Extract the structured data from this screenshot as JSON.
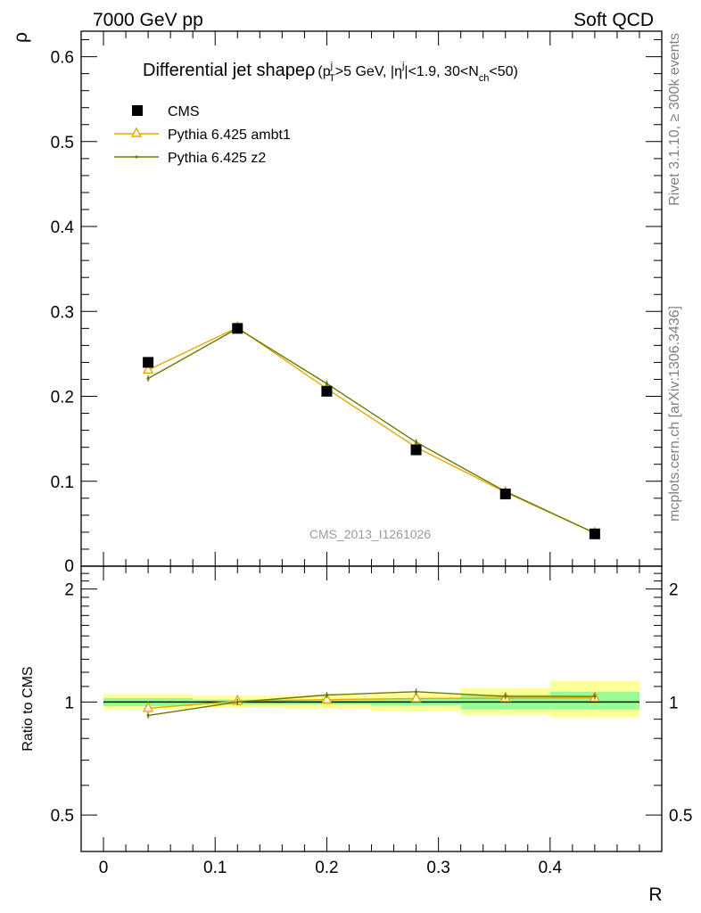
{
  "header": {
    "left": "7000 GeV pp",
    "right": "Soft QCD"
  },
  "side_labels": {
    "rivet": "Rivet 3.1.10, ≥ 300k events",
    "mcplots": "mcplots.cern.ch [arXiv:1306.3436]"
  },
  "chart_data": [
    {
      "type": "scatter",
      "title": {
        "main": "Differential jet shape",
        "rho": "ρ",
        "open": "(p",
        "pt_sup": "j",
        "pt_sub": "T",
        "mid1": ">5 GeV, |η",
        "eta_sup": "j",
        "mid2": "|<1.9, 30<N",
        "nch_sub": "ch",
        "close": "<50)"
      },
      "ylabel": "ρ",
      "xlabel": "R",
      "watermark": "CMS_2013_I1261026",
      "xlim": [
        -0.02,
        0.5
      ],
      "ylim": [
        0,
        0.63
      ],
      "yticks": [
        0.1,
        0.2,
        0.3,
        0.4,
        0.5,
        0.6
      ],
      "ytick_labels": [
        "0.1",
        "0.2",
        "0.3",
        "0.4",
        "0.5",
        "0.6"
      ],
      "y_zero_label": "0",
      "legend_position": "top-left",
      "series": [
        {
          "name": "CMS",
          "marker": "square",
          "color": "#000000",
          "x": [
            0.04,
            0.12,
            0.2,
            0.28,
            0.36,
            0.44
          ],
          "y": [
            0.24,
            0.28,
            0.206,
            0.137,
            0.085,
            0.038
          ]
        },
        {
          "name": "Pythia 6.425 ambt1",
          "marker": "triangle-open",
          "color": "#e8a800",
          "x": [
            0.04,
            0.12,
            0.2,
            0.28,
            0.36,
            0.44
          ],
          "y": [
            0.231,
            0.281,
            0.209,
            0.14,
            0.087,
            0.039
          ]
        },
        {
          "name": "Pythia 6.425 z2",
          "marker": "dot",
          "color": "#6b7a00",
          "x": [
            0.04,
            0.12,
            0.2,
            0.28,
            0.36,
            0.44
          ],
          "y": [
            0.221,
            0.28,
            0.215,
            0.146,
            0.088,
            0.039
          ]
        }
      ]
    },
    {
      "type": "scatter",
      "ylabel": "Ratio to CMS",
      "xlabel": "R",
      "log_y": true,
      "xlim": [
        -0.02,
        0.5
      ],
      "ylim": [
        0.4,
        2.3
      ],
      "yticks": [
        0.5,
        1,
        2
      ],
      "ytick_labels": [
        "0.5",
        "1",
        "2"
      ],
      "xticks": [
        0,
        0.1,
        0.2,
        0.3,
        0.4
      ],
      "xtick_labels": [
        "0",
        "0.1",
        "0.2",
        "0.3",
        "0.4"
      ],
      "bands": {
        "bins": [
          [
            0,
            0.08
          ],
          [
            0.08,
            0.16
          ],
          [
            0.16,
            0.24
          ],
          [
            0.24,
            0.32
          ],
          [
            0.32,
            0.4
          ],
          [
            0.4,
            0.48
          ]
        ],
        "inner": [
          [
            0.975,
            1.025
          ],
          [
            0.985,
            1.015
          ],
          [
            0.985,
            1.015
          ],
          [
            0.98,
            1.02
          ],
          [
            0.955,
            1.045
          ],
          [
            0.955,
            1.065
          ]
        ],
        "outer": [
          [
            0.955,
            1.05
          ],
          [
            0.965,
            1.04
          ],
          [
            0.96,
            1.045
          ],
          [
            0.945,
            1.055
          ],
          [
            0.925,
            1.09
          ],
          [
            0.91,
            1.14
          ]
        ],
        "inner_color": "#98fb98",
        "outer_color": "#ffff99"
      },
      "series": [
        {
          "name": "Pythia 6.425 ambt1",
          "marker": "triangle-open",
          "color": "#e8a800",
          "x": [
            0.04,
            0.12,
            0.2,
            0.28,
            0.36,
            0.44
          ],
          "y": [
            0.963,
            1.005,
            1.015,
            1.022,
            1.024,
            1.026
          ]
        },
        {
          "name": "Pythia 6.425 z2",
          "marker": "dot",
          "color": "#6b7a00",
          "x": [
            0.04,
            0.12,
            0.2,
            0.28,
            0.36,
            0.44
          ],
          "y": [
            0.921,
            1.0,
            1.044,
            1.065,
            1.035,
            1.035
          ]
        }
      ]
    }
  ]
}
